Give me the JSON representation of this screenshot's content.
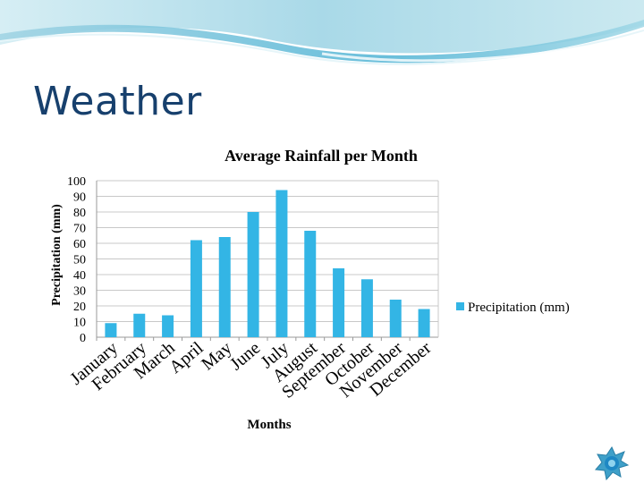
{
  "slide": {
    "title": "Weather"
  },
  "colors": {
    "bar": "#33b5e5",
    "title": "#17406d",
    "banner_top": "#b7dde9",
    "banner_wave": "#74c3dc"
  },
  "icons": {
    "corner": "star-burst-icon"
  },
  "chart_data": {
    "type": "bar",
    "title": "Average Rainfall per Month",
    "xlabel": "Months",
    "ylabel": "Precipitation (mm)",
    "ylim": [
      0,
      100
    ],
    "yticks": [
      0,
      10,
      20,
      30,
      40,
      50,
      60,
      70,
      80,
      90,
      100
    ],
    "legend": "right",
    "grid": true,
    "categories": [
      "January",
      "February",
      "March",
      "April",
      "May",
      "June",
      "July",
      "August",
      "September",
      "October",
      "November",
      "December"
    ],
    "series": [
      {
        "name": "Precipitation (mm)",
        "values": [
          9,
          15,
          14,
          62,
          64,
          80,
          94,
          68,
          44,
          37,
          24,
          18
        ]
      }
    ]
  }
}
